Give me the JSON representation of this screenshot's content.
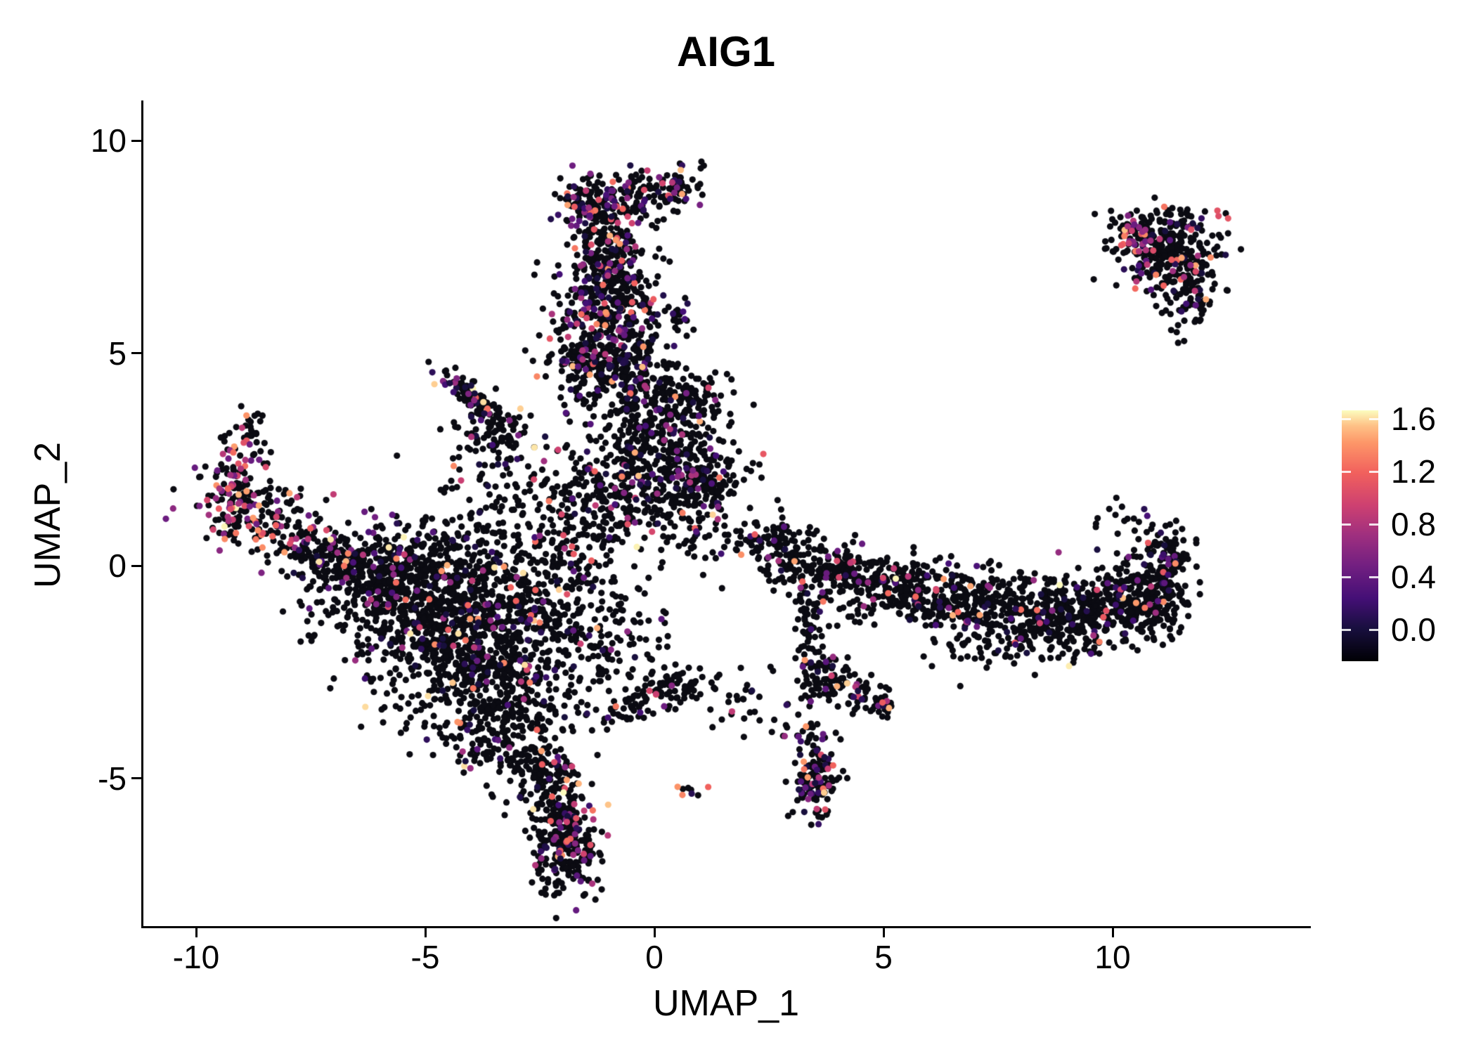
{
  "chart_data": {
    "type": "scatter",
    "title": "AIG1",
    "xlabel": "UMAP_1",
    "ylabel": "UMAP_2",
    "x_ticks": [
      "-10",
      "-5",
      "0",
      "5",
      "10"
    ],
    "x_tick_values": [
      -10,
      -5,
      0,
      5,
      10
    ],
    "y_ticks": [
      "-5",
      "0",
      "5",
      "10"
    ],
    "y_tick_values": [
      -5,
      0,
      5,
      10
    ],
    "xlim": [
      -11.2,
      14.3
    ],
    "ylim": [
      -8.5,
      10.9
    ],
    "grid": false,
    "background": "#ffffff",
    "axis_color": "#000000",
    "point_radius_px": 4.6,
    "black_point_color": "#0b0b12",
    "seed": 42,
    "colormap": {
      "name": "magma",
      "domain": [
        0,
        1.6
      ],
      "stops": [
        [
          0.0,
          "#000004"
        ],
        [
          0.13,
          "#180f3e"
        ],
        [
          0.25,
          "#440f76"
        ],
        [
          0.38,
          "#721f81"
        ],
        [
          0.5,
          "#9e2f7f"
        ],
        [
          0.62,
          "#cd4071"
        ],
        [
          0.75,
          "#f1605d"
        ],
        [
          0.87,
          "#fd9668"
        ],
        [
          0.94,
          "#fec287"
        ],
        [
          1.0,
          "#fcfdbf"
        ]
      ]
    },
    "legend": {
      "position": "right",
      "tick_labels": [
        "1.6",
        "1.2",
        "0.8",
        "0.4",
        "0.0"
      ],
      "tick_values": [
        1.6,
        1.2,
        0.8,
        0.4,
        0.0
      ],
      "vmin": 0,
      "vmax": 1.6
    },
    "clusters": [
      {
        "cx": -5.0,
        "cy": -0.9,
        "sx": 1.2,
        "sy": 0.8,
        "n": 550,
        "cf": 0.1
      },
      {
        "cx": -4.0,
        "cy": -2.3,
        "sx": 1.0,
        "sy": 0.9,
        "n": 500,
        "cf": 0.1
      },
      {
        "cx": -5.8,
        "cy": -0.3,
        "sx": 0.7,
        "sy": 0.5,
        "n": 200,
        "cf": 0.12
      },
      {
        "cx": -3.2,
        "cy": -3.9,
        "sx": 0.65,
        "sy": 0.6,
        "n": 180,
        "cf": 0.1
      },
      {
        "cx": -2.5,
        "cy": -4.9,
        "sx": 0.4,
        "sy": 0.5,
        "n": 90,
        "cf": 0.1
      },
      {
        "cx": -2.1,
        "cy": -5.8,
        "sx": 0.3,
        "sy": 0.6,
        "n": 110,
        "cf": 0.12
      },
      {
        "cx": -1.85,
        "cy": -6.8,
        "sx": 0.35,
        "sy": 0.55,
        "n": 200,
        "cf": 0.18
      },
      {
        "cx": -4.3,
        "cy": 0.3,
        "sx": 1.3,
        "sy": 0.5,
        "n": 180,
        "cf": 0.08
      },
      {
        "cx": -2.7,
        "cy": -1.5,
        "sx": 0.7,
        "sy": 1.0,
        "n": 220,
        "cf": 0.08
      },
      {
        "cx": -8.6,
        "cy": 1.1,
        "sx": 0.75,
        "sy": 0.45,
        "rot": -25,
        "n": 160,
        "cf": 0.35,
        "hot": true
      },
      {
        "cx": -9.2,
        "cy": 1.6,
        "sx": 0.25,
        "sy": 0.45,
        "n": 70,
        "cf": 0.4,
        "hot": true
      },
      {
        "cx": -8.85,
        "cy": 2.9,
        "sx": 0.25,
        "sy": 0.45,
        "n": 50,
        "cf": 0.35,
        "hot": true
      },
      {
        "cx": -7.3,
        "cy": 0.2,
        "sx": 0.55,
        "sy": 0.4,
        "rot": -30,
        "n": 110,
        "cf": 0.15
      },
      {
        "cx": -6.6,
        "cy": -0.1,
        "sx": 0.5,
        "sy": 0.4,
        "n": 60,
        "cf": 0.1
      },
      {
        "cx": -3.85,
        "cy": 3.85,
        "sx": 0.6,
        "sy": 0.14,
        "rot": -42,
        "n": 110,
        "cf": 0.2
      },
      {
        "cx": -3.4,
        "cy": 3.0,
        "sx": 0.45,
        "sy": 0.4,
        "n": 70,
        "cf": 0.15
      },
      {
        "cx": -3.6,
        "cy": 1.9,
        "sx": 0.7,
        "sy": 0.6,
        "n": 50,
        "cf": 0.08
      },
      {
        "cx": -1.25,
        "cy": 8.45,
        "sx": 0.45,
        "sy": 0.4,
        "n": 160,
        "cf": 0.3
      },
      {
        "cx": -0.9,
        "cy": 7.3,
        "sx": 0.45,
        "sy": 0.55,
        "n": 170,
        "cf": 0.2
      },
      {
        "cx": -1.2,
        "cy": 6.2,
        "sx": 0.5,
        "sy": 0.6,
        "n": 200,
        "cf": 0.25
      },
      {
        "cx": -1.4,
        "cy": 4.9,
        "sx": 0.55,
        "sy": 0.55,
        "n": 200,
        "cf": 0.2
      },
      {
        "cx": -0.45,
        "cy": 5.6,
        "sx": 0.3,
        "sy": 0.9,
        "n": 120,
        "cf": 0.15
      },
      {
        "cx": 0.5,
        "cy": 9.0,
        "sx": 0.35,
        "sy": 0.25,
        "n": 70,
        "cf": 0.25
      },
      {
        "cx": 0.55,
        "cy": 5.85,
        "sx": 0.15,
        "sy": 0.2,
        "n": 20,
        "cf": 0.3
      },
      {
        "cx": -0.3,
        "cy": 8.7,
        "sx": 0.3,
        "sy": 0.3,
        "n": 40,
        "cf": 0.15
      },
      {
        "cx": 0.55,
        "cy": 3.85,
        "sx": 0.5,
        "sy": 0.5,
        "n": 190,
        "cf": 0.12
      },
      {
        "cx": 1.0,
        "cy": 2.05,
        "sx": 0.5,
        "sy": 0.45,
        "n": 210,
        "cf": 0.12
      },
      {
        "cx": -0.2,
        "cy": 2.5,
        "sx": 0.6,
        "sy": 0.7,
        "n": 230,
        "cf": 0.1
      },
      {
        "cx": -1.3,
        "cy": 1.6,
        "sx": 0.8,
        "sy": 0.7,
        "n": 220,
        "cf": 0.1
      },
      {
        "cx": -0.6,
        "cy": 4.3,
        "sx": 0.5,
        "sy": 0.6,
        "n": 90,
        "cf": 0.12
      },
      {
        "cx": 1.0,
        "cy": 0.9,
        "sx": 0.5,
        "sy": 0.5,
        "n": 60,
        "cf": 0.1
      },
      {
        "cx": -1.8,
        "cy": -0.3,
        "sx": 0.8,
        "sy": 1.0,
        "n": 140,
        "cf": 0.08
      },
      {
        "cx": -0.9,
        "cy": -2.2,
        "sx": 0.7,
        "sy": 0.8,
        "n": 90,
        "cf": 0.08
      },
      {
        "cx": 0.5,
        "cy": -2.85,
        "sx": 0.55,
        "sy": 0.22,
        "n": 70,
        "cf": 0.12,
        "hot": true
      },
      {
        "cx": -0.55,
        "cy": -3.35,
        "sx": 0.4,
        "sy": 0.25,
        "n": 45,
        "cf": 0.1
      },
      {
        "cx": 0.75,
        "cy": -5.3,
        "sx": 0.12,
        "sy": 0.1,
        "n": 8,
        "cf": 0.5
      },
      {
        "cx": 2.0,
        "cy": -3.1,
        "sx": 0.5,
        "sy": 0.4,
        "n": 25,
        "cf": 0.1
      },
      {
        "cx": 2.7,
        "cy": -3.8,
        "sx": 0.15,
        "sy": 0.2,
        "n": 6,
        "cf": 0.35,
        "hot": true
      },
      {
        "cx": 2.75,
        "cy": 0.35,
        "sx": 0.35,
        "sy": 0.4,
        "n": 90,
        "cf": 0.12
      },
      {
        "cx": 3.9,
        "cy": -0.15,
        "sx": 0.5,
        "sy": 0.4,
        "n": 150,
        "cf": 0.12,
        "hot": true
      },
      {
        "cx": 5.3,
        "cy": -0.5,
        "sx": 0.6,
        "sy": 0.35,
        "n": 160,
        "cf": 0.12
      },
      {
        "cx": 6.6,
        "cy": -0.8,
        "sx": 0.9,
        "sy": 0.35,
        "n": 220,
        "cf": 0.1
      },
      {
        "cx": 8.3,
        "cy": -1.1,
        "sx": 0.8,
        "sy": 0.45,
        "n": 280,
        "cf": 0.1
      },
      {
        "cx": 9.6,
        "cy": -1.0,
        "sx": 0.6,
        "sy": 0.5,
        "n": 220,
        "cf": 0.1
      },
      {
        "cx": 10.8,
        "cy": -0.7,
        "sx": 0.45,
        "sy": 0.5,
        "n": 200,
        "cf": 0.1
      },
      {
        "cx": 11.2,
        "cy": 0.2,
        "sx": 0.25,
        "sy": 0.5,
        "n": 90,
        "cf": 0.12
      },
      {
        "cx": 10.4,
        "cy": 1.0,
        "sx": 0.6,
        "sy": 0.3,
        "n": 18,
        "cf": 0.1
      },
      {
        "cx": 2.2,
        "cy": 0.6,
        "sx": 0.3,
        "sy": 0.25,
        "n": 25,
        "cf": 0.1
      },
      {
        "cx": 7.6,
        "cy": -1.9,
        "sx": 1.0,
        "sy": 0.3,
        "n": 60,
        "cf": 0.08
      },
      {
        "cx": 3.35,
        "cy": -1.4,
        "sx": 0.18,
        "sy": 0.6,
        "n": 60,
        "cf": 0.12
      },
      {
        "cx": 3.7,
        "cy": -2.6,
        "sx": 0.3,
        "sy": 0.3,
        "n": 70,
        "cf": 0.15
      },
      {
        "cx": 4.5,
        "cy": -3.0,
        "sx": 0.35,
        "sy": 0.25,
        "n": 50,
        "cf": 0.12
      },
      {
        "cx": 5.0,
        "cy": -3.3,
        "sx": 0.15,
        "sy": 0.15,
        "n": 20,
        "cf": 0.15
      },
      {
        "cx": 3.55,
        "cy": -5.0,
        "sx": 0.22,
        "sy": 0.45,
        "n": 130,
        "cf": 0.2
      },
      {
        "cx": 3.3,
        "cy": -4.0,
        "sx": 0.15,
        "sy": 0.3,
        "n": 20,
        "cf": 0.1
      },
      {
        "cx": 11.2,
        "cy": 7.4,
        "sx": 0.55,
        "sy": 0.45,
        "n": 260,
        "cf": 0.15
      },
      {
        "cx": 11.7,
        "cy": 6.4,
        "sx": 0.3,
        "sy": 0.45,
        "n": 90,
        "cf": 0.15
      },
      {
        "cx": 10.45,
        "cy": 7.75,
        "sx": 0.3,
        "sy": 0.25,
        "n": 60,
        "cf": 0.45,
        "hot": true
      },
      {
        "cx": 12.5,
        "cy": 8.3,
        "sx": 0.1,
        "sy": 0.08,
        "n": 3,
        "cf": 0.8,
        "hot": true
      },
      {
        "cx": 11.4,
        "cy": 8.1,
        "sx": 0.4,
        "sy": 0.2,
        "n": 30,
        "cf": 0.2
      }
    ]
  }
}
